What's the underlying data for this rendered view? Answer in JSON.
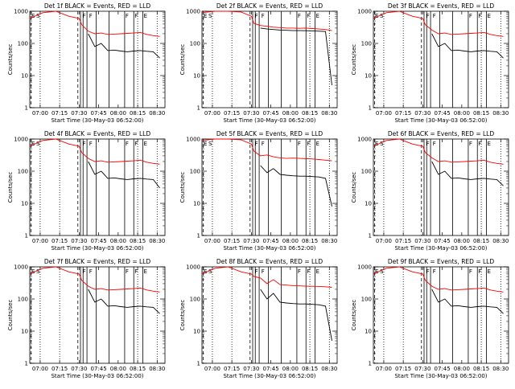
{
  "figure": {
    "event_label_E": "E",
    "event_label_S": "S",
    "event_label_F": "F"
  },
  "chart_data": [
    {
      "type": "line",
      "title": "Det 1f BLACK = Events, RED = LLD",
      "xlabel": "Start Time (30-May-03 06:52:00)",
      "ylabel": "Counts/sec",
      "yscale": "log",
      "ylim": [
        1,
        1000
      ],
      "x_tick_labels": [
        "07:00",
        "07:15",
        "07:30",
        "07:45",
        "08:00",
        "08:15",
        "08:30"
      ],
      "y_tick_labels": [
        "1",
        "10",
        "100",
        "1000"
      ],
      "x_minutes": [
        0,
        10,
        20,
        30,
        38,
        40,
        45,
        50,
        55,
        60,
        65,
        70,
        75,
        80,
        85,
        90,
        95,
        100
      ],
      "series": [
        {
          "name": "LLD",
          "color": "#ff0000",
          "values": [
            600,
            900,
            1000,
            700,
            600,
            380,
            240,
            200,
            210,
            190,
            195,
            200,
            205,
            210,
            220,
            190,
            175,
            165
          ]
        },
        {
          "name": "Events",
          "color": "#000000",
          "values": [
            null,
            null,
            null,
            null,
            null,
            null,
            200,
            80,
            100,
            60,
            62,
            58,
            55,
            58,
            60,
            57,
            55,
            35
          ]
        }
      ]
    },
    {
      "type": "line",
      "title": "Det 2f BLACK = Events, RED = LLD",
      "xlabel": "Start Time (30-May-03 06:52:00)",
      "ylabel": "Counts/sec",
      "yscale": "log",
      "ylim": [
        1,
        1000
      ],
      "x_tick_labels": [
        "07:00",
        "07:15",
        "07:30",
        "07:45",
        "08:00",
        "08:15",
        "08:30"
      ],
      "y_tick_labels": [
        "1",
        "10",
        "100",
        "1000"
      ],
      "x_minutes": [
        0,
        10,
        20,
        30,
        38,
        40,
        45,
        50,
        55,
        60,
        65,
        70,
        75,
        80,
        85,
        90,
        95,
        100
      ],
      "series": [
        {
          "name": "LLD",
          "color": "#ff0000",
          "values": [
            900,
            1000,
            1000,
            950,
            700,
            420,
            360,
            340,
            320,
            310,
            300,
            300,
            295,
            300,
            290,
            280,
            270,
            250
          ]
        },
        {
          "name": "Events",
          "color": "#000000",
          "values": [
            null,
            null,
            null,
            null,
            null,
            null,
            300,
            280,
            270,
            260,
            255,
            250,
            250,
            248,
            245,
            240,
            235,
            5
          ]
        }
      ]
    },
    {
      "type": "line",
      "title": "Det 3f BLACK = Events, RED = LLD",
      "xlabel": "Start Time (30-May-03 06:52:00)",
      "ylabel": "Counts/sec",
      "yscale": "log",
      "ylim": [
        1,
        1000
      ],
      "x_tick_labels": [
        "07:00",
        "07:15",
        "07:30",
        "07:45",
        "08:00",
        "08:15",
        "08:30"
      ],
      "y_tick_labels": [
        "1",
        "10",
        "100",
        "1000"
      ],
      "x_minutes": [
        0,
        10,
        20,
        30,
        38,
        40,
        45,
        50,
        55,
        60,
        65,
        70,
        75,
        80,
        85,
        90,
        95,
        100
      ],
      "series": [
        {
          "name": "LLD",
          "color": "#ff0000",
          "values": [
            600,
            900,
            1000,
            700,
            600,
            380,
            260,
            200,
            210,
            190,
            195,
            200,
            205,
            210,
            220,
            190,
            175,
            165
          ]
        },
        {
          "name": "Events",
          "color": "#000000",
          "values": [
            null,
            null,
            null,
            null,
            null,
            null,
            200,
            80,
            100,
            60,
            62,
            58,
            55,
            58,
            60,
            57,
            55,
            35
          ]
        }
      ]
    },
    {
      "type": "line",
      "title": "Det 4f BLACK = Events, RED = LLD",
      "xlabel": "Start Time (30-May-03 06:52:00)",
      "ylabel": "Counts/sec",
      "yscale": "log",
      "ylim": [
        1,
        1000
      ],
      "x_tick_labels": [
        "07:00",
        "07:15",
        "07:30",
        "07:45",
        "08:00",
        "08:15",
        "08:30"
      ],
      "y_tick_labels": [
        "1",
        "10",
        "100",
        "1000"
      ],
      "x_minutes": [
        0,
        10,
        20,
        30,
        38,
        40,
        45,
        50,
        55,
        60,
        65,
        70,
        75,
        80,
        85,
        90,
        95,
        100
      ],
      "series": [
        {
          "name": "LLD",
          "color": "#ff0000",
          "values": [
            600,
            900,
            1000,
            700,
            600,
            380,
            250,
            200,
            210,
            190,
            195,
            200,
            205,
            210,
            220,
            190,
            175,
            165
          ]
        },
        {
          "name": "Events",
          "color": "#000000",
          "values": [
            null,
            null,
            null,
            null,
            null,
            null,
            200,
            80,
            100,
            60,
            62,
            58,
            55,
            58,
            60,
            57,
            55,
            30
          ]
        }
      ]
    },
    {
      "type": "line",
      "title": "Det 5f BLACK = Events, RED = LLD",
      "xlabel": "Start Time (30-May-03 06:52:00)",
      "ylabel": "Counts/sec",
      "yscale": "log",
      "ylim": [
        1,
        1000
      ],
      "x_tick_labels": [
        "07:00",
        "07:15",
        "07:30",
        "07:45",
        "08:00",
        "08:15",
        "08:30"
      ],
      "y_tick_labels": [
        "1",
        "10",
        "100",
        "1000"
      ],
      "x_minutes": [
        0,
        10,
        20,
        30,
        38,
        40,
        45,
        50,
        55,
        60,
        65,
        70,
        75,
        80,
        85,
        90,
        95,
        100
      ],
      "series": [
        {
          "name": "LLD",
          "color": "#ff0000",
          "values": [
            900,
            1000,
            1000,
            950,
            700,
            420,
            300,
            320,
            280,
            260,
            250,
            255,
            250,
            245,
            240,
            230,
            220,
            210
          ]
        },
        {
          "name": "Events",
          "color": "#000000",
          "values": [
            null,
            null,
            null,
            null,
            null,
            null,
            150,
            90,
            120,
            80,
            75,
            72,
            70,
            70,
            68,
            66,
            60,
            8
          ]
        }
      ]
    },
    {
      "type": "line",
      "title": "Det 6f BLACK = Events, RED = LLD",
      "xlabel": "Start Time (30-May-03 06:52:00)",
      "ylabel": "Counts/sec",
      "yscale": "log",
      "ylim": [
        1,
        1000
      ],
      "x_tick_labels": [
        "07:00",
        "07:15",
        "07:30",
        "07:45",
        "08:00",
        "08:15",
        "08:30"
      ],
      "y_tick_labels": [
        "1",
        "10",
        "100",
        "1000"
      ],
      "x_minutes": [
        0,
        10,
        20,
        30,
        38,
        40,
        45,
        50,
        55,
        60,
        65,
        70,
        75,
        80,
        85,
        90,
        95,
        100
      ],
      "series": [
        {
          "name": "LLD",
          "color": "#ff0000",
          "values": [
            600,
            900,
            1000,
            700,
            600,
            380,
            260,
            200,
            210,
            190,
            195,
            200,
            205,
            210,
            220,
            190,
            175,
            165
          ]
        },
        {
          "name": "Events",
          "color": "#000000",
          "values": [
            null,
            null,
            null,
            null,
            null,
            null,
            200,
            80,
            100,
            60,
            62,
            58,
            55,
            58,
            60,
            57,
            55,
            35
          ]
        }
      ]
    },
    {
      "type": "line",
      "title": "Det 7f BLACK = Events, RED = LLD",
      "xlabel": "Start Time (30-May-03 06:52:00)",
      "ylabel": "Counts/sec",
      "yscale": "log",
      "ylim": [
        1,
        1000
      ],
      "x_tick_labels": [
        "07:00",
        "07:15",
        "07:30",
        "07:45",
        "08:00",
        "08:15",
        "08:30"
      ],
      "y_tick_labels": [
        "1",
        "10",
        "100",
        "1000"
      ],
      "x_minutes": [
        0,
        10,
        20,
        30,
        38,
        40,
        45,
        50,
        55,
        60,
        65,
        70,
        75,
        80,
        85,
        90,
        95,
        100
      ],
      "series": [
        {
          "name": "LLD",
          "color": "#ff0000",
          "values": [
            600,
            900,
            1000,
            700,
            600,
            380,
            250,
            200,
            210,
            190,
            195,
            200,
            205,
            210,
            220,
            190,
            175,
            165
          ]
        },
        {
          "name": "Events",
          "color": "#000000",
          "values": [
            null,
            null,
            null,
            null,
            null,
            null,
            200,
            80,
            100,
            60,
            62,
            58,
            55,
            58,
            60,
            57,
            55,
            35
          ]
        }
      ]
    },
    {
      "type": "line",
      "title": "Det 8f BLACK = Events, RED = LLD",
      "xlabel": "Start Time (30-May-03 06:52:00)",
      "ylabel": "Counts/sec",
      "yscale": "log",
      "ylim": [
        1,
        1000
      ],
      "x_tick_labels": [
        "07:00",
        "07:15",
        "07:30",
        "07:45",
        "08:00",
        "08:15",
        "08:30"
      ],
      "y_tick_labels": [
        "1",
        "10",
        "100",
        "1000"
      ],
      "x_minutes": [
        0,
        10,
        20,
        30,
        38,
        40,
        45,
        50,
        55,
        60,
        65,
        70,
        75,
        80,
        85,
        90,
        95,
        100
      ],
      "series": [
        {
          "name": "LLD",
          "color": "#ff0000",
          "values": [
            600,
            900,
            1000,
            700,
            600,
            500,
            450,
            300,
            400,
            280,
            270,
            260,
            255,
            250,
            248,
            245,
            240,
            230
          ]
        },
        {
          "name": "Events",
          "color": "#000000",
          "values": [
            null,
            null,
            null,
            null,
            null,
            null,
            200,
            100,
            150,
            80,
            75,
            72,
            70,
            70,
            68,
            66,
            60,
            5
          ]
        }
      ]
    },
    {
      "type": "line",
      "title": "Det 9f BLACK = Events, RED = LLD",
      "xlabel": "Start Time (30-May-03 06:52:00)",
      "ylabel": "Counts/sec",
      "yscale": "log",
      "ylim": [
        1,
        1000
      ],
      "x_tick_labels": [
        "07:00",
        "07:15",
        "07:30",
        "07:45",
        "08:00",
        "08:15",
        "08:30"
      ],
      "y_tick_labels": [
        "1",
        "10",
        "100",
        "1000"
      ],
      "x_minutes": [
        0,
        10,
        20,
        30,
        38,
        40,
        45,
        50,
        55,
        60,
        65,
        70,
        75,
        80,
        85,
        90,
        95,
        100
      ],
      "series": [
        {
          "name": "LLD",
          "color": "#ff0000",
          "values": [
            600,
            900,
            1000,
            700,
            600,
            380,
            250,
            200,
            210,
            190,
            195,
            200,
            205,
            210,
            220,
            190,
            175,
            165
          ]
        },
        {
          "name": "Events",
          "color": "#000000",
          "values": [
            null,
            null,
            null,
            null,
            null,
            null,
            200,
            80,
            100,
            60,
            62,
            58,
            55,
            58,
            60,
            57,
            55,
            35
          ]
        }
      ]
    }
  ]
}
